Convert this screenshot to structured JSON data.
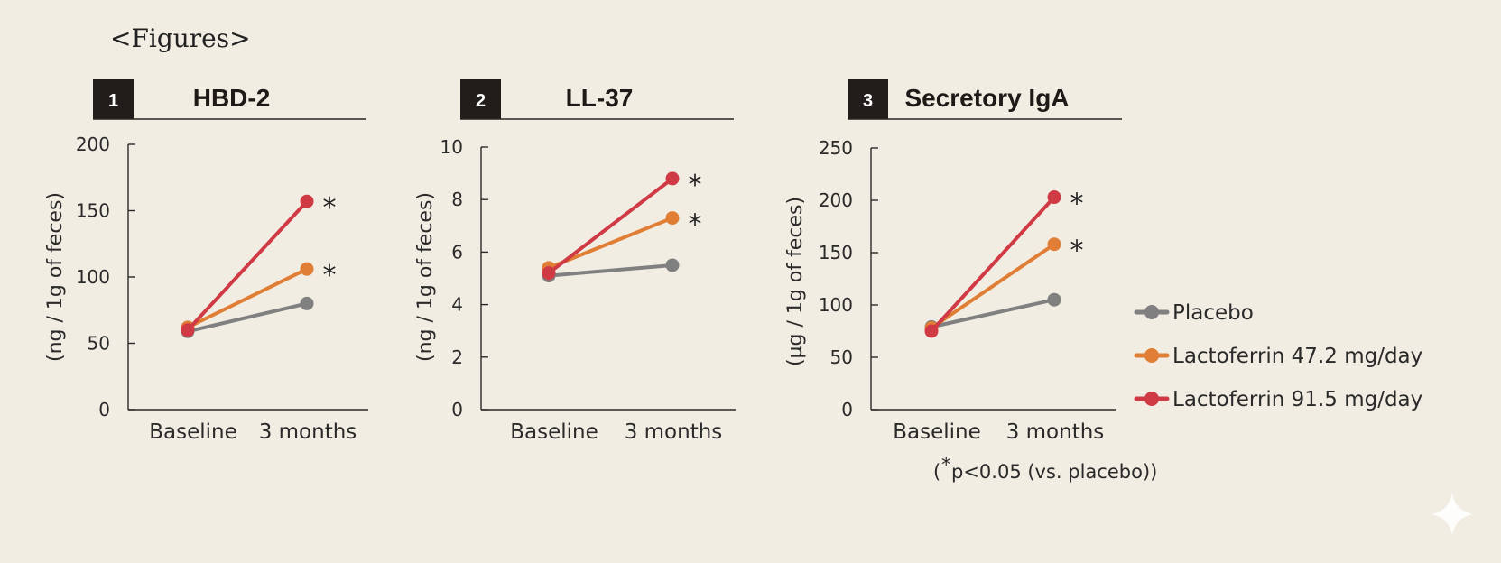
{
  "heading": "<Figures>",
  "series_colors": {
    "Placebo": "#808080",
    "Lactoferrin 47.2 mg/day": "#e07e35",
    "Lactoferrin 91.5 mg/day": "#cf3a45"
  },
  "chart_data": [
    {
      "type": "line",
      "panel_number": "1",
      "title": "HBD-2",
      "ylabel": "(ng / 1g of feces)",
      "xlabel": "",
      "categories": [
        "Baseline",
        "3 months"
      ],
      "ylim": [
        0,
        200
      ],
      "yticks": [
        0,
        50,
        100,
        150,
        200
      ],
      "series": [
        {
          "name": "Placebo",
          "values": [
            59,
            80
          ],
          "significant": false
        },
        {
          "name": "Lactoferrin 47.2 mg/day",
          "values": [
            62,
            106
          ],
          "significant": true
        },
        {
          "name": "Lactoferrin 91.5 mg/day",
          "values": [
            60,
            157
          ],
          "significant": true
        }
      ]
    },
    {
      "type": "line",
      "panel_number": "2",
      "title": "LL-37",
      "ylabel": "(ng / 1g of feces)",
      "xlabel": "",
      "categories": [
        "Baseline",
        "3 months"
      ],
      "ylim": [
        0,
        10
      ],
      "yticks": [
        0,
        2,
        4,
        6,
        8,
        10
      ],
      "series": [
        {
          "name": "Placebo",
          "values": [
            5.1,
            5.5
          ],
          "significant": false
        },
        {
          "name": "Lactoferrin 47.2 mg/day",
          "values": [
            5.4,
            7.3
          ],
          "significant": true
        },
        {
          "name": "Lactoferrin 91.5 mg/day",
          "values": [
            5.2,
            8.8
          ],
          "significant": true
        }
      ]
    },
    {
      "type": "line",
      "panel_number": "3",
      "title": "Secretory IgA",
      "ylabel": "(µg / 1g of feces)",
      "xlabel": "",
      "categories": [
        "Baseline",
        "3 months"
      ],
      "ylim": [
        0,
        250
      ],
      "yticks": [
        0,
        50,
        100,
        150,
        200,
        250
      ],
      "series": [
        {
          "name": "Placebo",
          "values": [
            79,
            105
          ],
          "significant": false
        },
        {
          "name": "Lactoferrin 47.2 mg/day",
          "values": [
            78,
            158
          ],
          "significant": true
        },
        {
          "name": "Lactoferrin 91.5 mg/day",
          "values": [
            75,
            203
          ],
          "significant": true
        }
      ]
    }
  ],
  "legend": [
    "Placebo",
    "Lactoferrin 47.2 mg/day",
    "Lactoferrin 91.5 mg/day"
  ],
  "significance_marker": "*",
  "footnote": {
    "star": "*",
    "text": "p<0.05 (vs. placebo)"
  }
}
